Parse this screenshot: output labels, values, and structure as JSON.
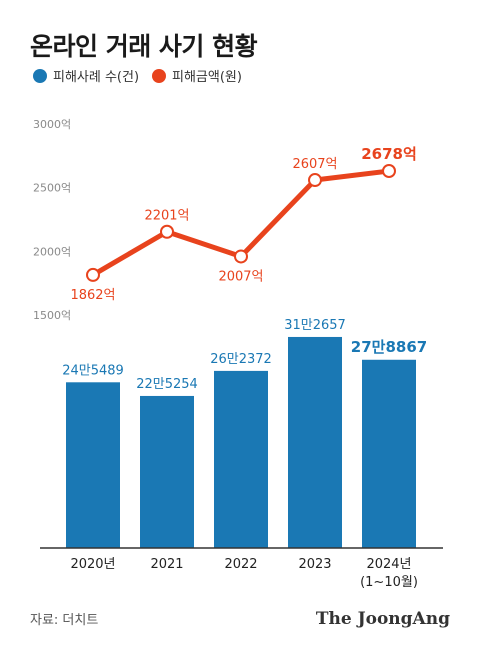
{
  "title": "온라인 거래 사기 현황",
  "colors": {
    "bar": "#1a78b4",
    "line": "#e8431d",
    "axis": "#333333"
  },
  "source": "자료: 더치트",
  "brand": "The JoongAng",
  "chart_data": {
    "type": "bar+line",
    "categories": [
      "2020년",
      "2021",
      "2022",
      "2023",
      "2024년"
    ],
    "category_sublabels": [
      "",
      "",
      "",
      "",
      "(1~10월)"
    ],
    "legend_position": "top-left",
    "grid": false,
    "series": [
      {
        "name": "피해사례 수(건)",
        "type": "bar",
        "values": [
          245489,
          225254,
          262372,
          312657,
          278867
        ],
        "labels": [
          "24만5489",
          "22만5254",
          "26만2372",
          "31만2657",
          "27만8867"
        ],
        "ylim": [
          0,
          320000
        ]
      },
      {
        "name": "피해금액(원)",
        "type": "line",
        "values": [
          1862,
          2201,
          2007,
          2607,
          2678
        ],
        "labels": [
          "1862억",
          "2201억",
          "2007억",
          "2607억",
          "2678억"
        ],
        "ylim": [
          1500,
          3000
        ],
        "yticks": [
          1500,
          2000,
          2500,
          3000
        ],
        "ytick_labels": [
          "1500억",
          "2000억",
          "2500억",
          "3000억"
        ]
      }
    ]
  }
}
